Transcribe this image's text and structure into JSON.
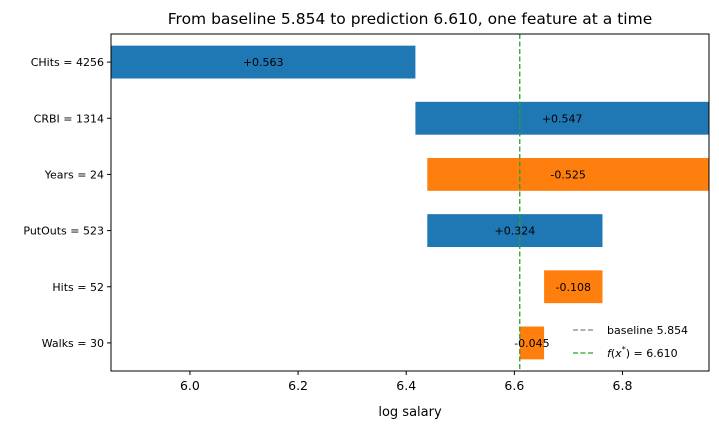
{
  "chart_data": {
    "type": "bar",
    "orientation": "horizontal",
    "title": "From baseline 5.854 to prediction 6.610, one feature at a time",
    "xlabel": "log salary",
    "ylabel": "",
    "xlim": [
      5.854,
      6.96
    ],
    "xticks": [
      6.0,
      6.2,
      6.4,
      6.6,
      6.8
    ],
    "xtick_labels": [
      "6.0",
      "6.2",
      "6.4",
      "6.6",
      "6.8"
    ],
    "grid": false,
    "colors": {
      "positive": "#1f77b4",
      "negative": "#ff7f0e",
      "baseline": "#808080",
      "prediction": "#2ca02c"
    },
    "categories": [
      "CHits = 4256",
      "CRBI = 1314",
      "Years = 24",
      "PutOuts = 523",
      "Hits = 52",
      "Walks = 30"
    ],
    "bars": [
      {
        "category": "CHits = 4256",
        "start": 5.854,
        "end": 6.417,
        "value": 0.563,
        "label": "+0.563",
        "sign": "positive"
      },
      {
        "category": "CRBI = 1314",
        "start": 6.417,
        "end": 6.964,
        "value": 0.547,
        "label": "+0.547",
        "sign": "positive"
      },
      {
        "category": "Years = 24",
        "start": 6.964,
        "end": 6.439,
        "value": -0.525,
        "label": "-0.525",
        "sign": "negative"
      },
      {
        "category": "PutOuts = 523",
        "start": 6.439,
        "end": 6.763,
        "value": 0.324,
        "label": "+0.324",
        "sign": "positive"
      },
      {
        "category": "Hits = 52",
        "start": 6.763,
        "end": 6.655,
        "value": -0.108,
        "label": "-0.108",
        "sign": "negative"
      },
      {
        "category": "Walks = 30",
        "start": 6.655,
        "end": 6.61,
        "value": -0.045,
        "label": "-0.045",
        "sign": "negative"
      }
    ],
    "baseline": 5.854,
    "prediction": 6.61,
    "legend": {
      "placement": "lower-right",
      "entries": [
        {
          "label": "baseline 5.854",
          "key": "baseline"
        },
        {
          "label": "f(x*) = 6.610",
          "key": "prediction"
        }
      ]
    }
  }
}
